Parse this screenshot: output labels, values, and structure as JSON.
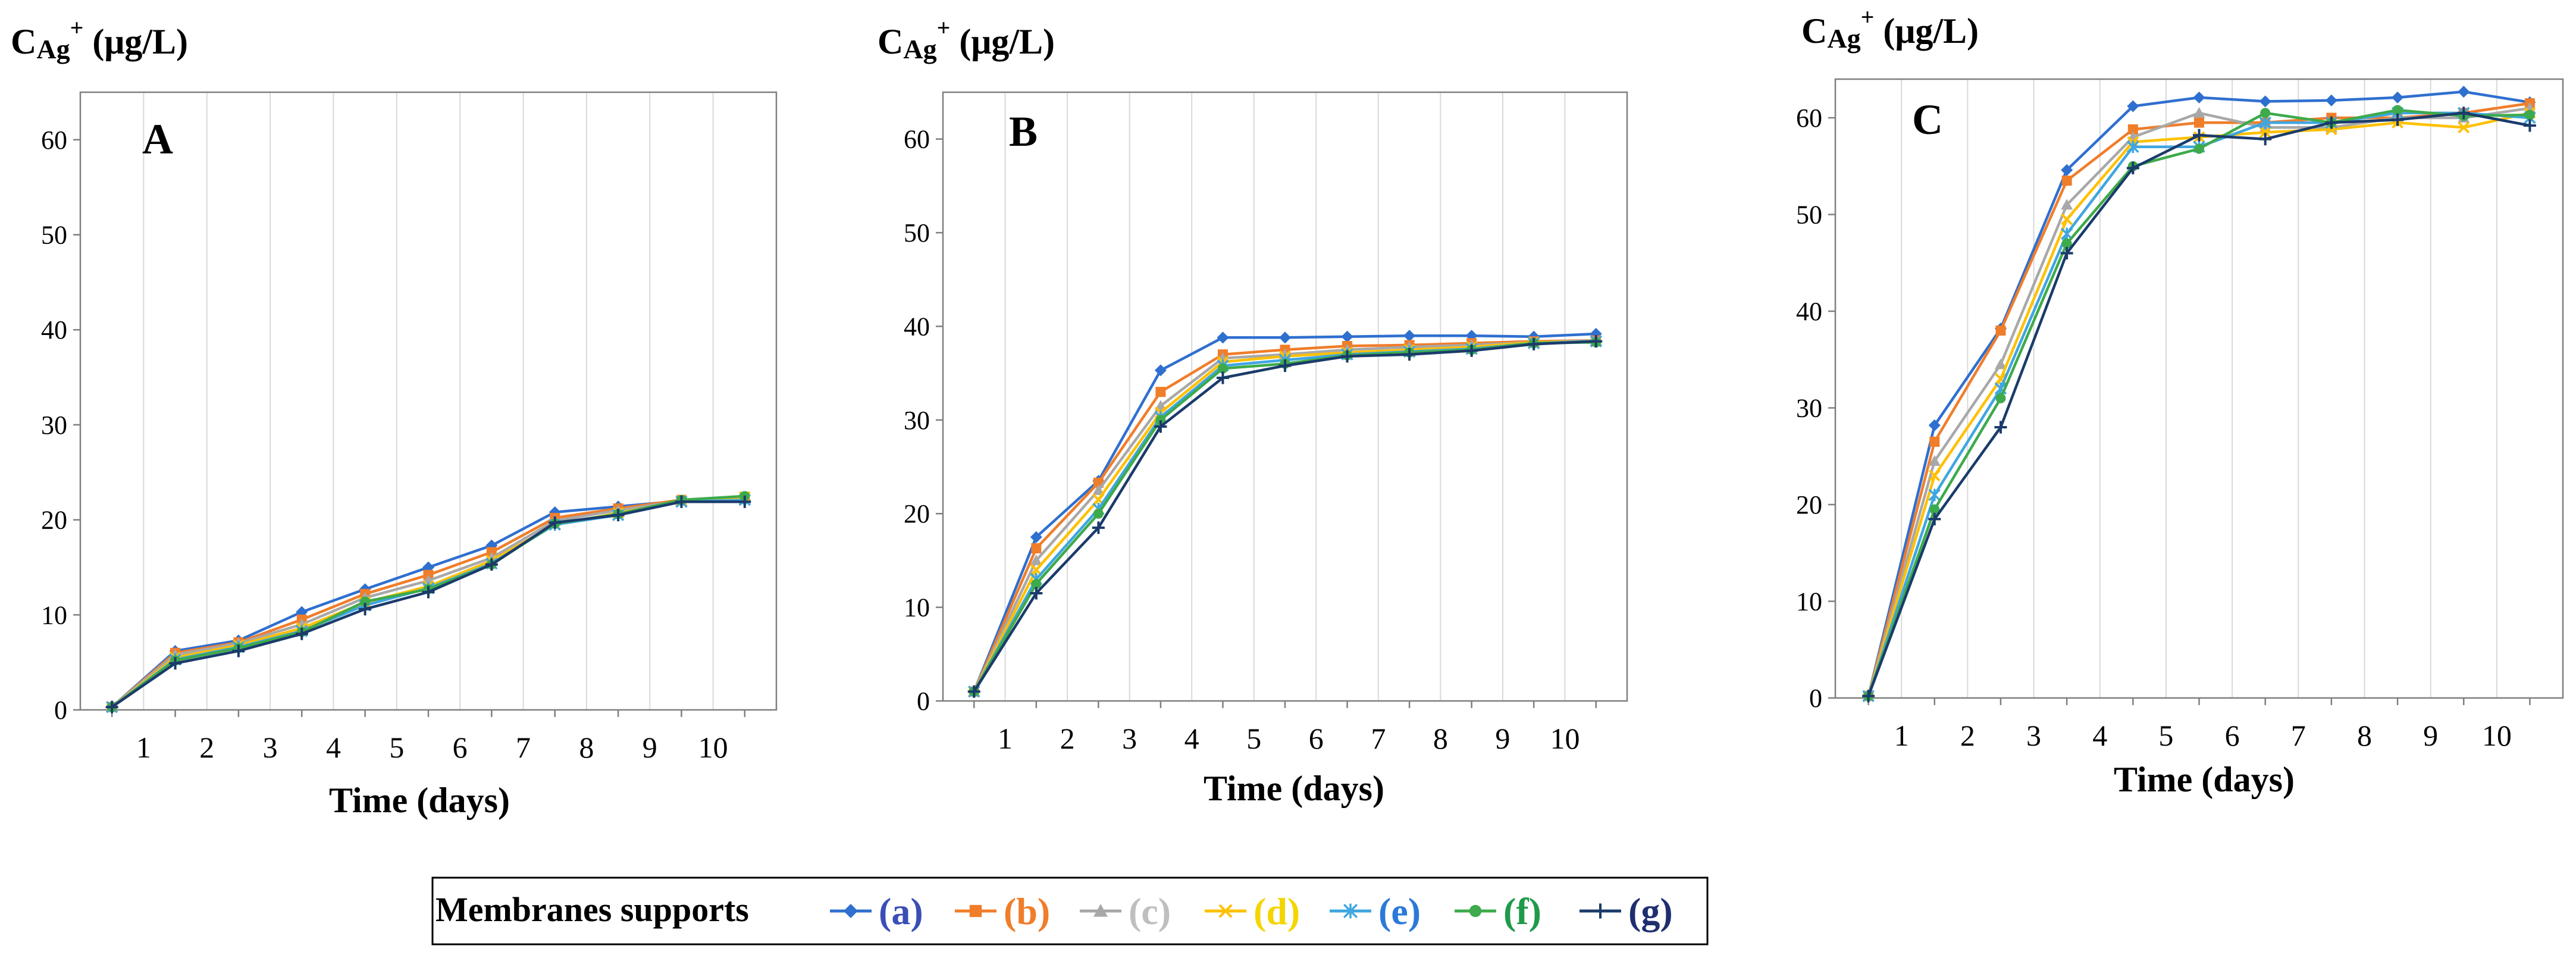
{
  "figure": {
    "legend_title": "Membranes supports",
    "series_colors": [
      "#2f6fcf",
      "#f07d2a",
      "#a8a8a8",
      "#ffc000",
      "#3fa6e0",
      "#3daa4b",
      "#1a3b6b"
    ],
    "series_markers": [
      "diamond",
      "square",
      "triangle",
      "x",
      "star",
      "circle",
      "plus"
    ],
    "legend_text_colors": [
      "#3a4fb5",
      "#f07d2a",
      "#bfbfbf",
      "#f5d500",
      "#2a7ad8",
      "#1f9a4a",
      "#1f2f6e"
    ]
  },
  "chart_data": [
    {
      "type": "line",
      "panel_label": "A",
      "title": "",
      "ylabel_main": "C",
      "ylabel_sub": "Ag",
      "ylabel_sup": "+",
      "ylabel_unit": " (μg/L)",
      "xlabel": "Time (days)",
      "ylim": [
        0,
        65
      ],
      "yticks": [
        "0",
        "10",
        "20",
        "30",
        "40",
        "50",
        "60"
      ],
      "xticks": [
        "1",
        "2",
        "3",
        "4",
        "5",
        "6",
        "7",
        "8",
        "9",
        "10"
      ],
      "x": [
        0.5,
        1.5,
        2.5,
        3.5,
        4.5,
        5.5,
        6.5,
        7.5,
        8.5,
        9.5,
        10.5
      ],
      "series": [
        {
          "name": "(a)",
          "values": [
            0.3,
            6.2,
            7.3,
            10.3,
            12.7,
            15.0,
            17.3,
            20.8,
            21.4,
            22.0,
            22.1
          ]
        },
        {
          "name": "(b)",
          "values": [
            0.3,
            6.0,
            7.1,
            9.5,
            12.2,
            14.2,
            16.6,
            20.2,
            21.2,
            22.1,
            22.3
          ]
        },
        {
          "name": "(c)",
          "values": [
            0.3,
            5.8,
            7.0,
            9.0,
            11.8,
            13.6,
            16.0,
            19.9,
            21.0,
            22.0,
            22.2
          ]
        },
        {
          "name": "(d)",
          "values": [
            0.3,
            5.5,
            6.8,
            8.6,
            11.3,
            13.0,
            15.7,
            19.5,
            20.7,
            22.0,
            22.4
          ]
        },
        {
          "name": "(e)",
          "values": [
            0.3,
            5.3,
            6.6,
            8.3,
            11.0,
            12.8,
            15.4,
            19.5,
            20.5,
            21.9,
            22.1
          ]
        },
        {
          "name": "(f)",
          "values": [
            0.3,
            5.2,
            6.5,
            8.2,
            11.4,
            12.7,
            15.3,
            19.6,
            20.6,
            22.1,
            22.5
          ]
        },
        {
          "name": "(g)",
          "values": [
            0.3,
            4.9,
            6.2,
            8.0,
            10.6,
            12.4,
            15.3,
            19.7,
            20.5,
            21.9,
            21.9
          ]
        }
      ]
    },
    {
      "type": "line",
      "panel_label": "B",
      "title": "",
      "ylabel_main": "C",
      "ylabel_sub": "Ag",
      "ylabel_sup": "+",
      "ylabel_unit": " (μg/L)",
      "xlabel": "Time (days)",
      "ylim": [
        0,
        65
      ],
      "yticks": [
        "0",
        "10",
        "20",
        "30",
        "40",
        "50",
        "60"
      ],
      "xticks": [
        "1",
        "2",
        "3",
        "4",
        "5",
        "6",
        "7",
        "8",
        "9",
        "10"
      ],
      "x": [
        0.5,
        1.5,
        2.5,
        3.5,
        4.5,
        5.5,
        6.5,
        7.5,
        8.5,
        9.5,
        10.5
      ],
      "series": [
        {
          "name": "(a)",
          "values": [
            1.0,
            17.5,
            23.5,
            35.3,
            38.8,
            38.8,
            38.9,
            39.0,
            39.0,
            38.9,
            39.2
          ]
        },
        {
          "name": "(b)",
          "values": [
            1.0,
            16.3,
            23.3,
            33.0,
            37.0,
            37.5,
            37.9,
            38.0,
            38.2,
            38.4,
            38.5
          ]
        },
        {
          "name": "(c)",
          "values": [
            1.0,
            15.0,
            22.5,
            31.5,
            36.6,
            37.0,
            37.5,
            37.8,
            38.0,
            38.3,
            38.5
          ]
        },
        {
          "name": "(d)",
          "values": [
            1.0,
            14.0,
            21.5,
            30.8,
            36.2,
            36.8,
            37.2,
            37.5,
            37.8,
            38.3,
            38.4
          ]
        },
        {
          "name": "(e)",
          "values": [
            1.0,
            13.0,
            20.5,
            30.3,
            35.8,
            36.4,
            37.0,
            37.3,
            37.6,
            38.2,
            38.4
          ]
        },
        {
          "name": "(f)",
          "values": [
            1.0,
            12.5,
            20.0,
            30.0,
            35.5,
            36.0,
            36.9,
            37.2,
            37.5,
            38.2,
            38.3
          ]
        },
        {
          "name": "(g)",
          "values": [
            1.0,
            11.5,
            18.5,
            29.3,
            34.5,
            35.8,
            36.8,
            37.0,
            37.4,
            38.1,
            38.4
          ]
        }
      ]
    },
    {
      "type": "line",
      "panel_label": "C",
      "title": "",
      "ylabel_main": "C",
      "ylabel_sub": "Ag",
      "ylabel_sup": "+",
      "ylabel_unit": " (μg/L)",
      "xlabel": "Time (days)",
      "ylim": [
        0,
        64
      ],
      "yticks": [
        "0",
        "10",
        "20",
        "30",
        "40",
        "50",
        "60"
      ],
      "xticks": [
        "1",
        "2",
        "3",
        "4",
        "5",
        "6",
        "7",
        "8",
        "9",
        "10"
      ],
      "x": [
        0.5,
        1.5,
        2.5,
        3.5,
        4.5,
        5.5,
        6.5,
        7.5,
        8.5,
        9.5,
        10.5
      ],
      "series": [
        {
          "name": "(a)",
          "values": [
            0.2,
            28.2,
            38.2,
            54.6,
            61.2,
            62.1,
            61.7,
            61.8,
            62.1,
            62.7,
            61.6
          ]
        },
        {
          "name": "(b)",
          "values": [
            0.2,
            26.5,
            38.0,
            53.5,
            58.8,
            59.5,
            59.5,
            60.0,
            60.0,
            60.5,
            61.5
          ]
        },
        {
          "name": "(c)",
          "values": [
            0.2,
            24.5,
            34.5,
            51.0,
            58.0,
            60.5,
            59.0,
            59.0,
            60.0,
            60.0,
            61.0
          ]
        },
        {
          "name": "(d)",
          "values": [
            0.2,
            23.0,
            33.0,
            49.5,
            57.5,
            58.0,
            58.5,
            58.8,
            59.5,
            59.0,
            60.5
          ]
        },
        {
          "name": "(e)",
          "values": [
            0.2,
            21.0,
            32.0,
            48.0,
            57.0,
            57.0,
            59.5,
            59.5,
            60.5,
            60.5,
            60.0
          ]
        },
        {
          "name": "(f)",
          "values": [
            0.2,
            19.5,
            31.0,
            47.0,
            55.0,
            56.8,
            60.5,
            59.5,
            60.8,
            60.2,
            60.3
          ]
        },
        {
          "name": "(g)",
          "values": [
            0.2,
            18.5,
            28.0,
            46.0,
            54.8,
            58.2,
            57.8,
            59.5,
            59.8,
            60.5,
            59.2
          ]
        }
      ]
    }
  ]
}
